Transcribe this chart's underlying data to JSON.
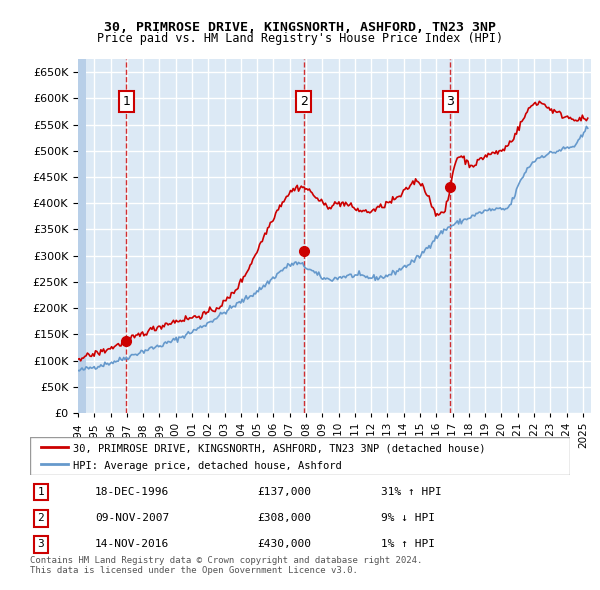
{
  "title1": "30, PRIMROSE DRIVE, KINGSNORTH, ASHFORD, TN23 3NP",
  "title2": "Price paid vs. HM Land Registry's House Price Index (HPI)",
  "ylabel": "",
  "ylim": [
    0,
    675000
  ],
  "yticks": [
    0,
    50000,
    100000,
    150000,
    200000,
    250000,
    300000,
    350000,
    400000,
    450000,
    500000,
    550000,
    600000,
    650000
  ],
  "xlim_start": 1994.0,
  "xlim_end": 2025.5,
  "background_color": "#dce9f5",
  "plot_bg": "#dce9f5",
  "hatch_color": "#b8cfe8",
  "grid_color": "#ffffff",
  "sale_color": "#cc0000",
  "hpi_color": "#6699cc",
  "sales": [
    {
      "date": 1996.96,
      "price": 137000,
      "label": "1"
    },
    {
      "date": 2007.86,
      "price": 308000,
      "label": "2"
    },
    {
      "date": 2016.87,
      "price": 430000,
      "label": "3"
    }
  ],
  "vlines": [
    1996.96,
    2007.86,
    2016.87
  ],
  "legend_line1": "30, PRIMROSE DRIVE, KINGSNORTH, ASHFORD, TN23 3NP (detached house)",
  "legend_line2": "HPI: Average price, detached house, Ashford",
  "table": [
    {
      "num": "1",
      "date": "18-DEC-1996",
      "price": "£137,000",
      "hpi": "31% ↑ HPI"
    },
    {
      "num": "2",
      "date": "09-NOV-2007",
      "price": "£308,000",
      "hpi": "9% ↓ HPI"
    },
    {
      "num": "3",
      "date": "14-NOV-2016",
      "price": "£430,000",
      "hpi": "1% ↑ HPI"
    }
  ],
  "footnote": "Contains HM Land Registry data © Crown copyright and database right 2024.\nThis data is licensed under the Open Government Licence v3.0.",
  "xtick_years": [
    1994,
    1995,
    1996,
    1997,
    1998,
    1999,
    2000,
    2001,
    2002,
    2003,
    2004,
    2005,
    2006,
    2007,
    2008,
    2009,
    2010,
    2011,
    2012,
    2013,
    2014,
    2015,
    2016,
    2017,
    2018,
    2019,
    2020,
    2021,
    2022,
    2023,
    2024,
    2025
  ]
}
